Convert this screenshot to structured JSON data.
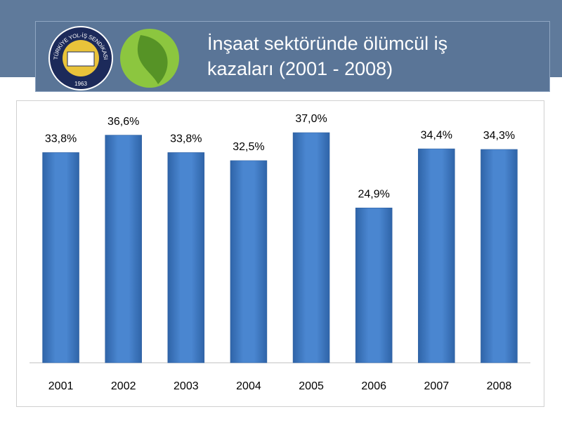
{
  "logo": {
    "name": "TÜRKİYE YOL-İŞ SENDİKASI",
    "year": "1963"
  },
  "chart_data": {
    "type": "bar",
    "title": "İnşaat sektöründe ölümcül iş kazaları (2001 - 2008)",
    "categories": [
      "2001",
      "2002",
      "2003",
      "2004",
      "2005",
      "2006",
      "2007",
      "2008"
    ],
    "values": [
      33.8,
      36.6,
      33.8,
      32.5,
      37.0,
      24.9,
      34.4,
      34.3
    ],
    "value_labels": [
      "33,8%",
      "36,6%",
      "33,8%",
      "32,5%",
      "37,0%",
      "24,9%",
      "34,4%",
      "34,3%"
    ],
    "color": "#4a86d0"
  }
}
